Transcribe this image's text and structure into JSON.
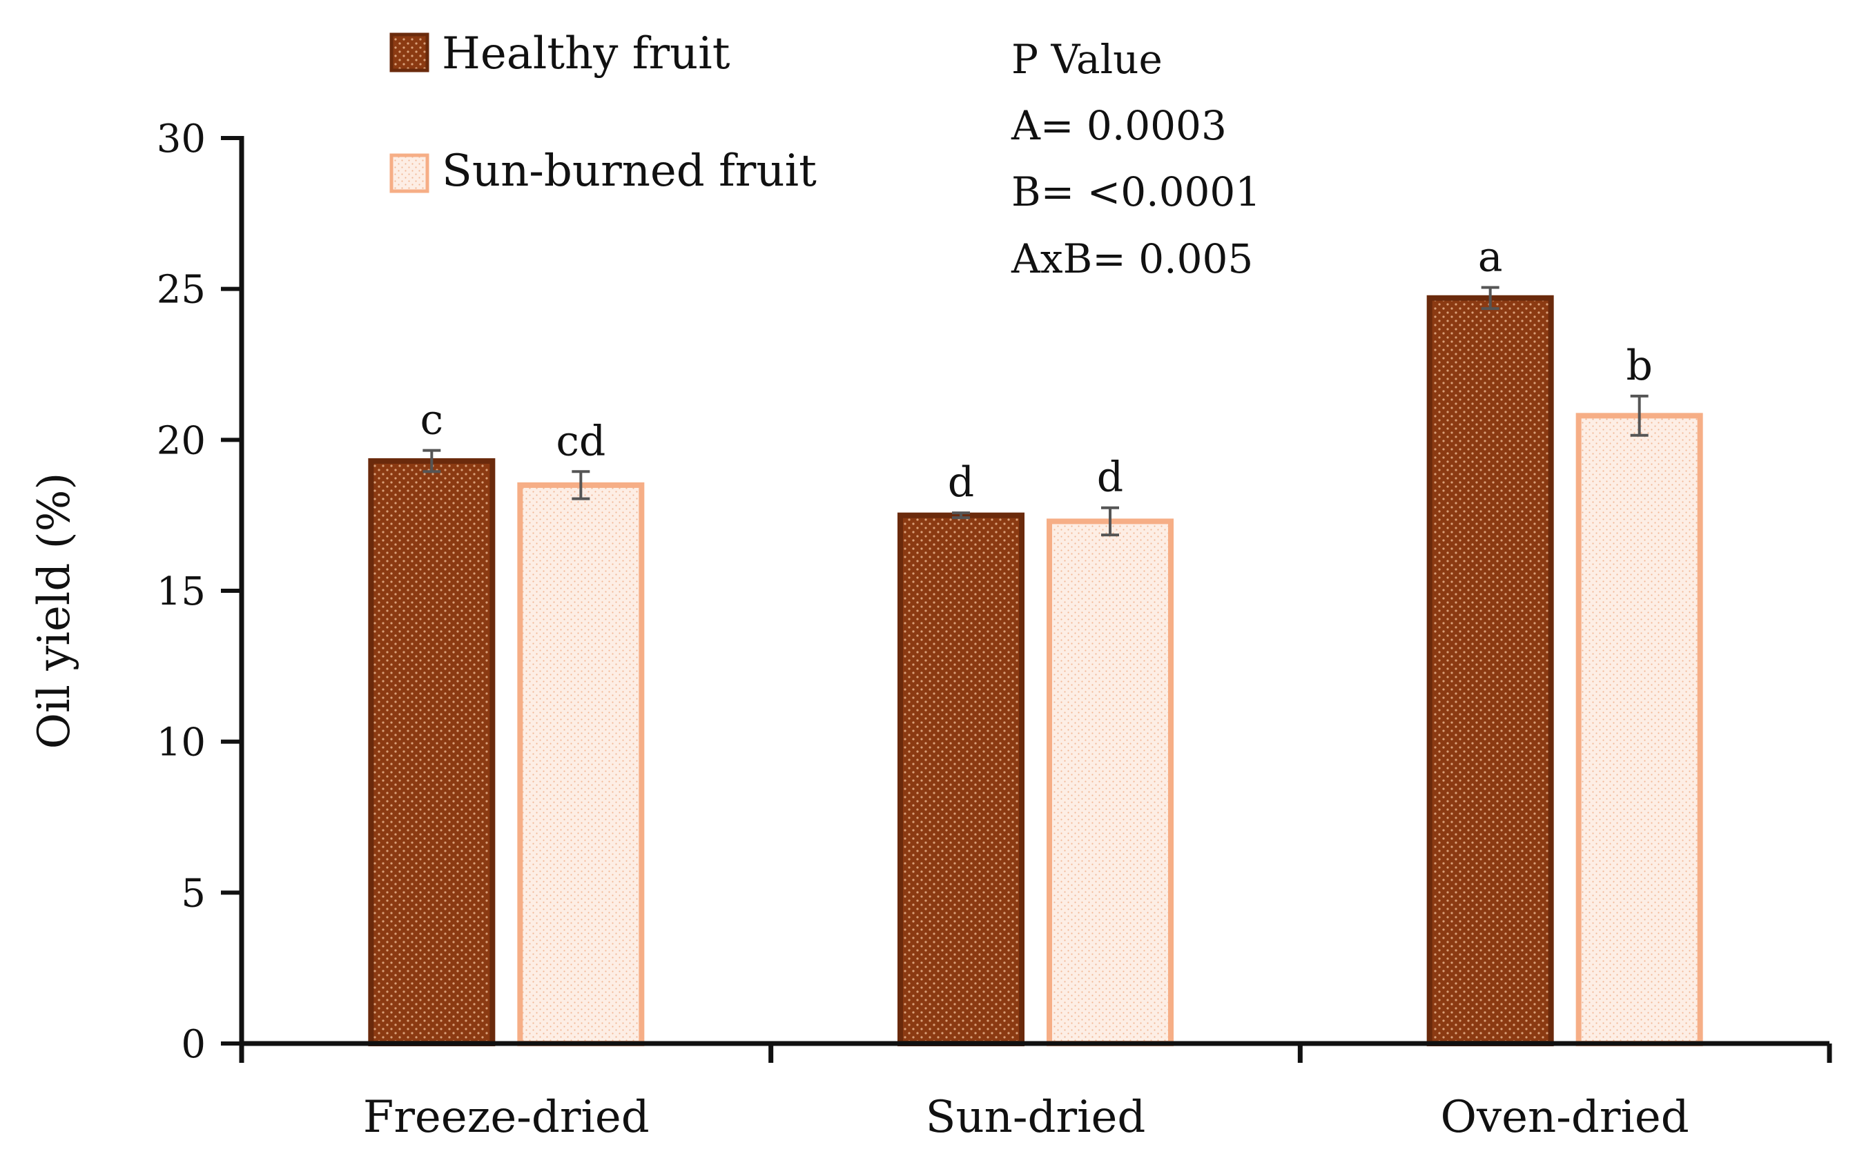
{
  "chart_data": {
    "type": "bar",
    "title": "",
    "xlabel": "",
    "ylabel": "Oil yield (%)",
    "ylim": [
      0,
      30
    ],
    "yticks": [
      0,
      5,
      10,
      15,
      20,
      25,
      30
    ],
    "categories": [
      "Freeze-dried",
      "Sun-dried",
      "Oven-dried"
    ],
    "series": [
      {
        "name": "Healthy fruit",
        "color": "#8B3A12",
        "edge": "#6A2A0C",
        "values": [
          19.3,
          17.5,
          24.7
        ],
        "errors": [
          0.35,
          0.08,
          0.35
        ],
        "letters": [
          "c",
          "d",
          "a"
        ]
      },
      {
        "name": "Sun-burned fruit",
        "color": "#FBE3D6",
        "edge": "#F6AE86",
        "values": [
          18.5,
          17.3,
          20.8
        ],
        "errors": [
          0.45,
          0.45,
          0.65
        ],
        "letters": [
          "cd",
          "d",
          "b"
        ]
      }
    ],
    "legend_position": "top-left",
    "annotation": {
      "heading": "P Value",
      "lines": [
        "A= 0.0003",
        "B= <0.0001",
        "AxB= 0.005"
      ]
    }
  }
}
